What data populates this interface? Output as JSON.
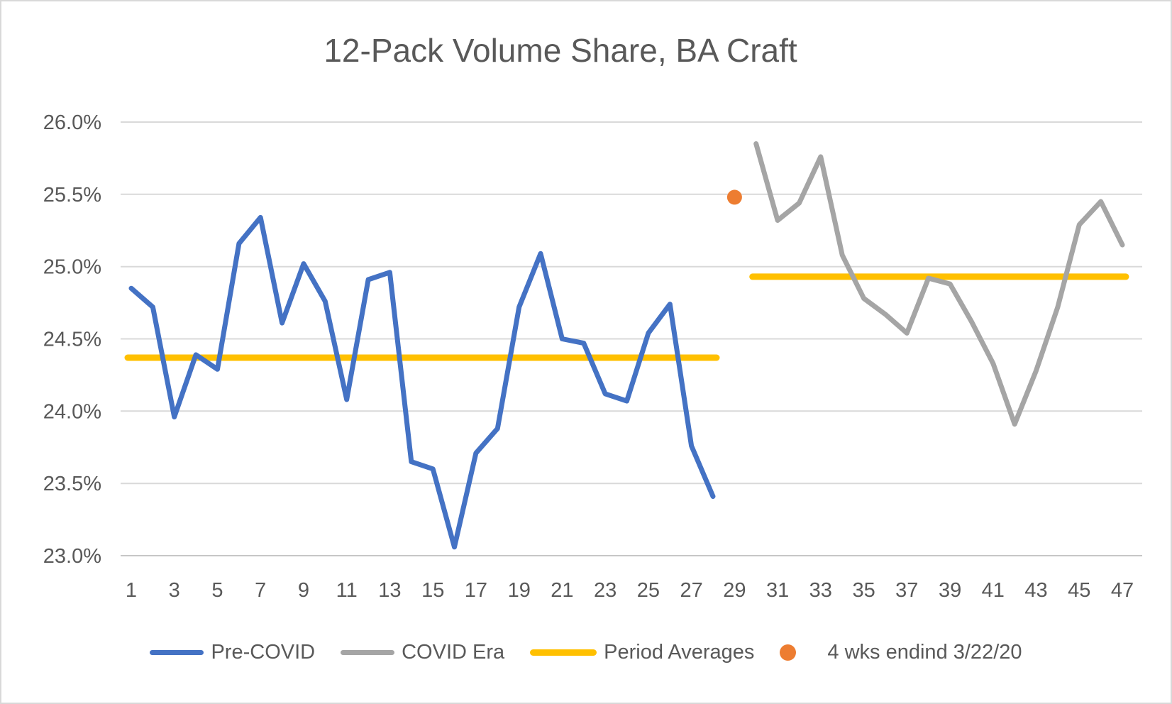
{
  "colors": {
    "pre_covid": "#4472C4",
    "covid_era": "#A5A5A5",
    "period_averages": "#FFC000",
    "marker": "#ED7D31",
    "gridline": "#D9D9D9",
    "axis_line": "#C6C6C6",
    "axis_text": "#595959",
    "title_text": "#595959",
    "legend_text": "#595959",
    "frame_border": "#D9D9D9",
    "background": "#FFFFFF"
  },
  "y_axis": {
    "tick_labels": [
      "26.0%",
      "25.5%",
      "25.0%",
      "24.5%",
      "24.0%",
      "23.5%",
      "23.0%"
    ],
    "min": 23.0,
    "max": 26.0,
    "step": 0.5
  },
  "x_axis": {
    "tick_labels": [
      "1",
      "3",
      "5",
      "7",
      "9",
      "11",
      "13",
      "15",
      "17",
      "19",
      "21",
      "23",
      "25",
      "27",
      "29",
      "31",
      "33",
      "35",
      "37",
      "39",
      "41",
      "43",
      "45",
      "47"
    ],
    "tick_weeks": [
      1,
      3,
      5,
      7,
      9,
      11,
      13,
      15,
      17,
      19,
      21,
      23,
      25,
      27,
      29,
      31,
      33,
      35,
      37,
      39,
      41,
      43,
      45,
      47
    ]
  },
  "legend": {
    "items": [
      {
        "label": "Pre-COVID",
        "swatch": "line",
        "color_key": "pre_covid"
      },
      {
        "label": "COVID Era",
        "swatch": "line",
        "color_key": "covid_era"
      },
      {
        "label": "Period Averages",
        "swatch": "line",
        "color_key": "period_averages"
      },
      {
        "label": "4 wks endind 3/22/20",
        "swatch": "dot",
        "color_key": "marker"
      }
    ]
  },
  "chart_data": {
    "type": "line",
    "title": "12-Pack Volume Share, BA Craft",
    "xlabel": "",
    "ylabel": "",
    "ylim": [
      23.0,
      26.0
    ],
    "xlim": [
      1,
      47
    ],
    "grid": "horizontal",
    "legend_position": "bottom",
    "y_unit": "percent",
    "series": [
      {
        "name": "Pre-COVID",
        "type": "line",
        "color": "#4472C4",
        "x": [
          1,
          2,
          3,
          4,
          5,
          6,
          7,
          8,
          9,
          10,
          11,
          12,
          13,
          14,
          15,
          16,
          17,
          18,
          19,
          20,
          21,
          22,
          23,
          24,
          25,
          26,
          27,
          28
        ],
        "values": [
          24.85,
          24.72,
          23.96,
          24.39,
          24.29,
          25.16,
          25.34,
          24.61,
          25.02,
          24.76,
          24.08,
          24.91,
          24.96,
          23.65,
          23.6,
          23.06,
          23.71,
          23.88,
          24.72,
          25.09,
          24.5,
          24.47,
          24.12,
          24.07,
          24.54,
          24.74,
          23.76,
          23.41
        ]
      },
      {
        "name": "COVID Era",
        "type": "line",
        "color": "#A5A5A5",
        "x": [
          30,
          31,
          32,
          33,
          34,
          35,
          36,
          37,
          38,
          39,
          40,
          41,
          42,
          43,
          44,
          45,
          46,
          47
        ],
        "values": [
          25.85,
          25.32,
          25.44,
          25.76,
          25.08,
          24.78,
          24.67,
          24.54,
          24.92,
          24.88,
          24.62,
          24.33,
          23.91,
          24.28,
          24.72,
          25.29,
          25.45,
          25.15
        ]
      },
      {
        "name": "Period Averages",
        "type": "line",
        "color": "#FFC000",
        "segments": [
          {
            "x_start": 1,
            "x_end": 28,
            "value": 24.37
          },
          {
            "x_start": 30,
            "x_end": 47,
            "value": 24.93
          }
        ]
      },
      {
        "name": "4 wks endind 3/22/20",
        "type": "scatter",
        "color": "#ED7D31",
        "points": [
          {
            "x": 29,
            "y": 25.48
          }
        ]
      }
    ]
  }
}
